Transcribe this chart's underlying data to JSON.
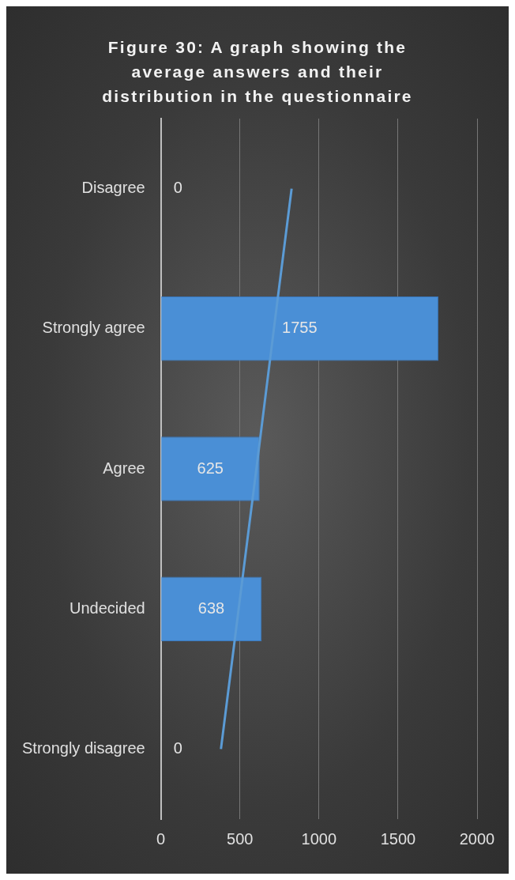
{
  "chart_data": {
    "type": "bar",
    "orientation": "horizontal",
    "title": "Figure 30: A graph showing the average answers and their distribution in the questionnaire",
    "categories": [
      "Disagree",
      "Strongly agree",
      "Agree",
      "Undecided",
      "Strongly disagree"
    ],
    "series": [
      {
        "color": "#4a8fd6",
        "values": [
          0,
          1755,
          625,
          638,
          0
        ],
        "value_labels": [
          "0",
          "1755",
          "625",
          "638",
          "0"
        ]
      },
      {
        "type": "line",
        "color": "#5b9bd5",
        "values": [
          827,
          715,
          604,
          492,
          380
        ]
      }
    ],
    "xlim": [
      0,
      2000
    ],
    "xticks": [
      0,
      500,
      1000,
      1500,
      2000
    ],
    "grid": "x",
    "legend": false,
    "marker": "none"
  }
}
